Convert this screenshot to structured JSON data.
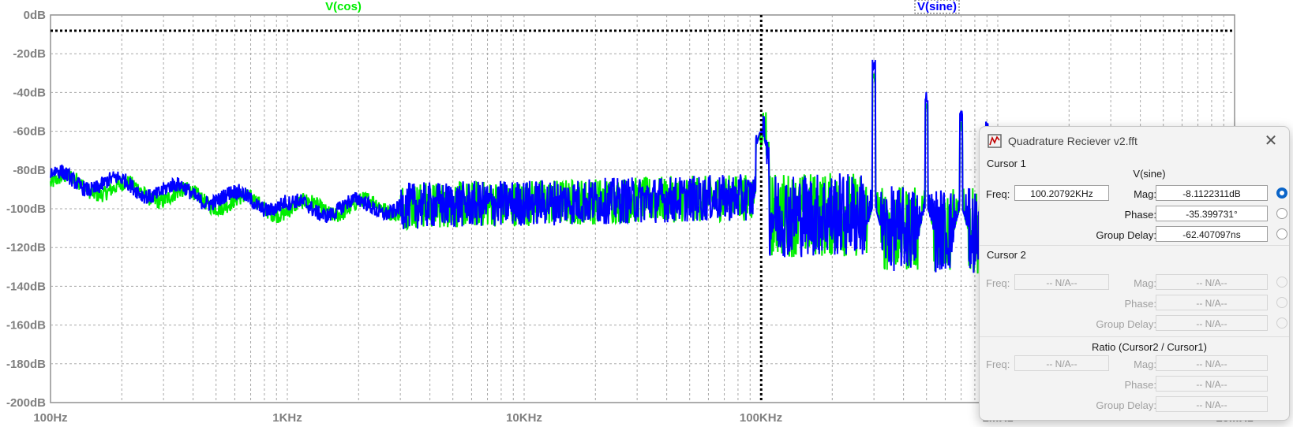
{
  "plot": {
    "traces": [
      {
        "name": "V(cos)",
        "color": "#00ee00"
      },
      {
        "name": "V(sine)",
        "color": "#0000ff"
      }
    ],
    "y_axis": {
      "ticks": [
        "0dB",
        "-20dB",
        "-40dB",
        "-60dB",
        "-80dB",
        "-100dB",
        "-120dB",
        "-140dB",
        "-160dB",
        "-180dB",
        "-200dB"
      ],
      "range_db": [
        -200,
        0
      ]
    },
    "x_axis": {
      "scale": "log",
      "ticks": [
        "100Hz",
        "1KHz",
        "10KHz",
        "100KHz",
        "1MHz",
        "10MHz"
      ],
      "range_hz": [
        100,
        10000000
      ]
    },
    "grid": true,
    "cursor": {
      "freq_hz": 100207.92,
      "level_db": -8.11
    }
  },
  "dialog": {
    "title": "Quadrature Reciever v2.fft",
    "close_glyph": "✕",
    "cursor1": {
      "group": "Cursor 1",
      "trace": "V(sine)",
      "freq_label": "Freq:",
      "freq": "100.20792KHz",
      "mag_label": "Mag:",
      "mag": "-8.1122311dB",
      "phase_label": "Phase:",
      "phase": "-35.399731°",
      "gd_label": "Group Delay:",
      "gd": "-62.407097ns"
    },
    "cursor2": {
      "group": "Cursor 2",
      "freq_label": "Freq:",
      "freq": "-- N/A--",
      "mag_label": "Mag:",
      "mag": "-- N/A--",
      "phase_label": "Phase:",
      "phase": "-- N/A--",
      "gd_label": "Group Delay:",
      "gd": "-- N/A--"
    },
    "ratio": {
      "group": "Ratio (Cursor2 / Cursor1)",
      "freq_label": "Freq:",
      "freq": "-- N/A--",
      "mag_label": "Mag:",
      "mag": "-- N/A--",
      "phase_label": "Phase:",
      "phase": "-- N/A--",
      "gd_label": "Group Delay:",
      "gd": "-- N/A--"
    }
  }
}
